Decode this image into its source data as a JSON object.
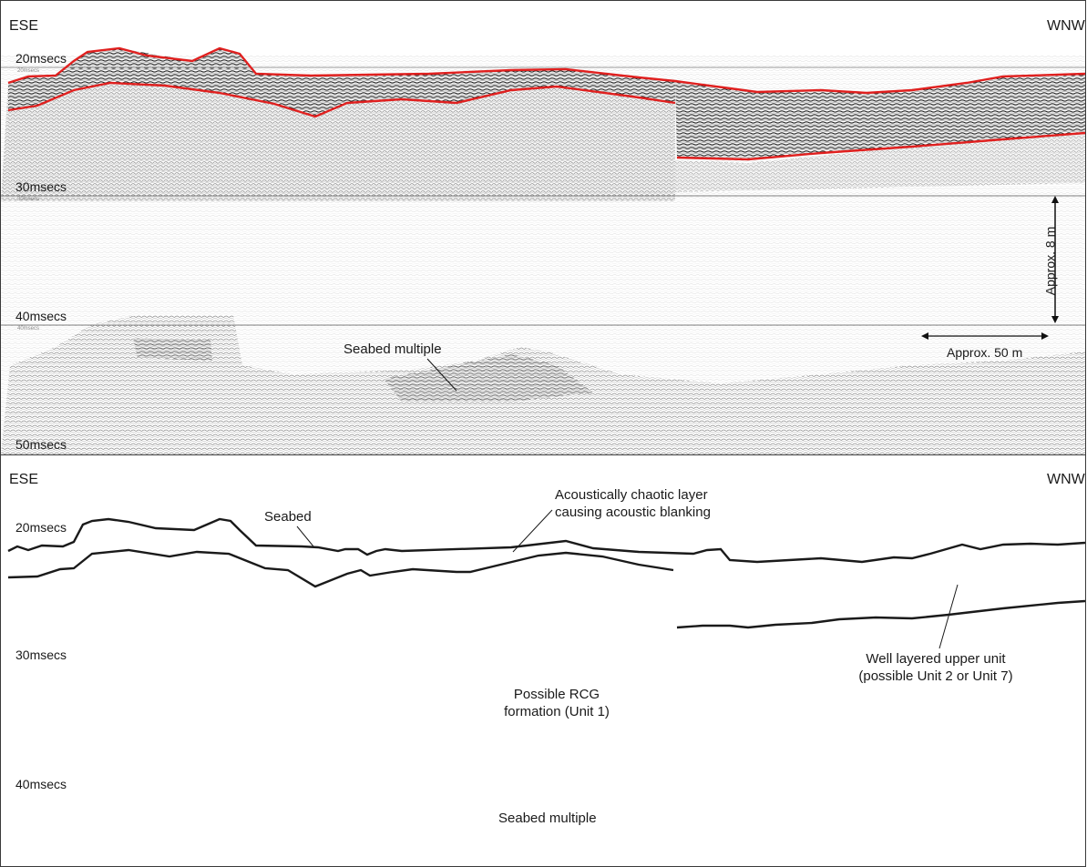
{
  "top_panel": {
    "left_direction": "ESE",
    "right_direction": "WNW",
    "time_labels": [
      "20msecs",
      "30msecs",
      "40msecs",
      "50msecs"
    ],
    "small_time_labels": [
      "20msecs",
      "30msecs",
      "40msecs"
    ],
    "annotations": {
      "seabed_multiple": "Seabed multiple",
      "vertical_scale": "Approx. 8 m",
      "horizontal_scale": "Approx. 50 m"
    },
    "colors": {
      "horizon": "#e0201f",
      "reflector": "#222222"
    }
  },
  "bottom_panel": {
    "left_direction": "ESE",
    "right_direction": "WNW",
    "time_labels": [
      "20msecs",
      "30msecs",
      "40msecs"
    ],
    "annotations": {
      "seabed": "Seabed",
      "chaotic_line1": "Acoustically chaotic layer",
      "chaotic_line2": "causing acoustic blanking",
      "upper_unit_line1": "Well layered upper unit",
      "upper_unit_line2": "(possible Unit 2 or Unit 7)",
      "rcg_line1": "Possible RCG",
      "rcg_line2": "formation (Unit 1)",
      "seabed_multiple": "Seabed multiple"
    }
  }
}
